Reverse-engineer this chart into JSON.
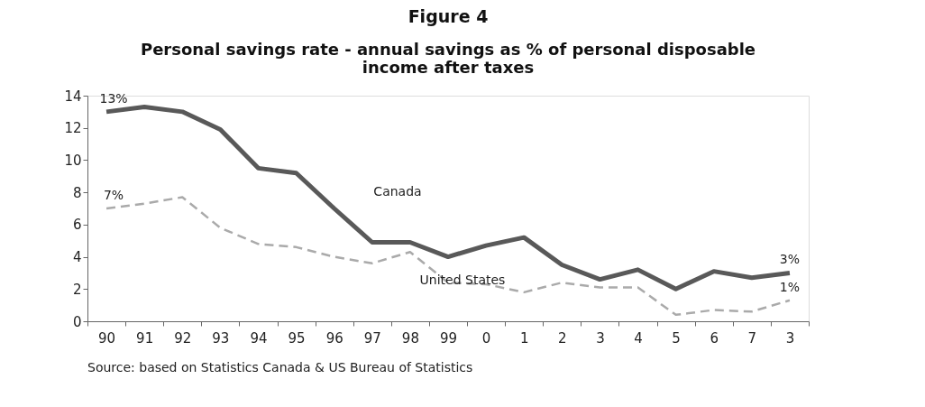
{
  "chart_data": {
    "type": "line",
    "title": "Figure 4",
    "subtitle": "Personal savings rate - annual savings as % of personal disposable income after taxes",
    "categories": [
      "90",
      "91",
      "92",
      "93",
      "94",
      "95",
      "96",
      "97",
      "98",
      "99",
      "0",
      "1",
      "2",
      "3",
      "4",
      "5",
      "6",
      "7",
      "3"
    ],
    "series": [
      {
        "name": "Canada",
        "color": "#595959",
        "line_style": "solid",
        "values": [
          13,
          13.3,
          13,
          11.9,
          9.5,
          9.2,
          7,
          4.9,
          4.9,
          4.0,
          4.7,
          5.2,
          3.5,
          2.6,
          3.2,
          2.0,
          3.1,
          2.7,
          3.0
        ]
      },
      {
        "name": "United States",
        "color": "#aaaaaa",
        "line_style": "dashed",
        "values": [
          7,
          7.3,
          7.7,
          5.8,
          4.8,
          4.6,
          4.0,
          3.6,
          4.3,
          2.4,
          2.3,
          1.8,
          2.4,
          2.1,
          2.1,
          0.4,
          0.7,
          0.6,
          1.3
        ]
      }
    ],
    "ylim": [
      0,
      14
    ],
    "yticks": [
      0,
      2,
      4,
      6,
      8,
      10,
      12,
      14
    ],
    "grid": false,
    "legend": false,
    "marker": "none",
    "annotations": [
      {
        "text": "13%",
        "x": "90",
        "y": 13
      },
      {
        "text": "7%",
        "x": "90",
        "y": 7
      },
      "3%",
      "1%",
      "Source: based on Statistics Canada & US Bureau of Statistics"
    ]
  }
}
